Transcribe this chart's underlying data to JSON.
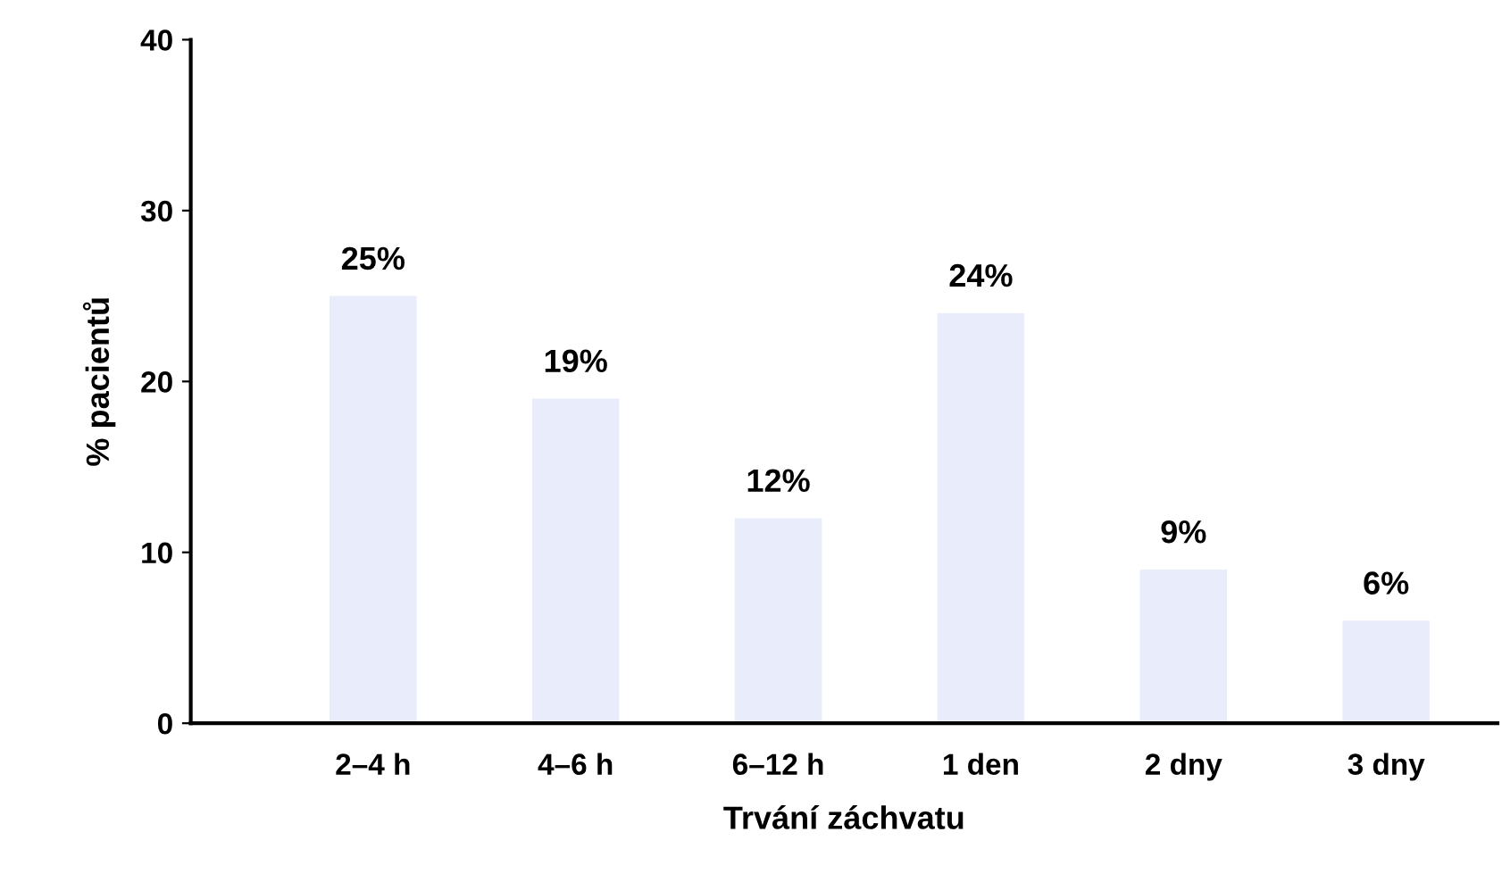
{
  "chart_data": {
    "type": "bar",
    "xlabel": "Trvání záchvatu",
    "ylabel": "% pacientů",
    "categories": [
      "2–4 h",
      "4–6 h",
      "6–12 h",
      "1 den",
      "2 dny",
      "3 dny"
    ],
    "values": [
      25,
      19,
      12,
      24,
      9,
      6
    ],
    "value_labels": [
      "25%",
      "19%",
      "12%",
      "24%",
      "9%",
      "6%"
    ],
    "color": "#e9edfb",
    "ylim": [
      0,
      40
    ],
    "yticks": [
      0,
      10,
      20,
      30,
      40
    ],
    "grid": false,
    "legend": false
  }
}
